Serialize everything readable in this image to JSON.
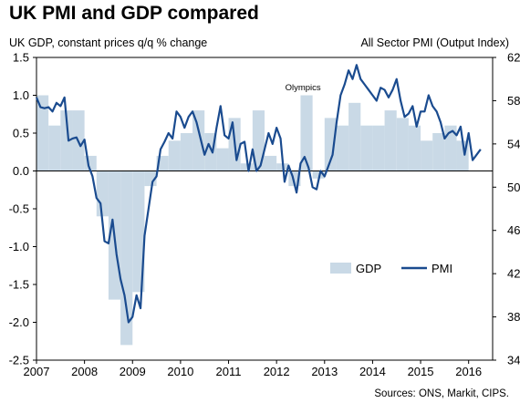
{
  "title": "UK PMI and GDP compared",
  "source": "Sources: ONS, Markit, CIPS.",
  "chart_data": {
    "type": "bar+line",
    "title": "UK PMI and GDP compared",
    "left_axis_label": "UK GDP, constant prices q/q % change",
    "right_axis_label": "All Sector PMI (Output Index)",
    "left_ylim": [
      -2.5,
      1.5
    ],
    "left_ticks": [
      "1.5",
      "1.0",
      "0.5",
      "0.0",
      "-0.5",
      "-1.0",
      "-1.5",
      "-2.0",
      "-2.5"
    ],
    "right_ylim": [
      34,
      62
    ],
    "right_ticks": [
      "62",
      "58",
      "54",
      "50",
      "46",
      "42",
      "38",
      "34"
    ],
    "x_range": [
      2007,
      2016.5
    ],
    "x_ticks": [
      "2007",
      "2008",
      "2009",
      "2010",
      "2011",
      "2012",
      "2013",
      "2014",
      "2015",
      "2016"
    ],
    "legend_position": "right-center",
    "annotation": "Olympics",
    "series": [
      {
        "name": "GDP",
        "type": "bar",
        "axis": "left",
        "color": "#c9d9e6",
        "quarter_start": 2007,
        "values": [
          1.0,
          0.6,
          0.8,
          0.8,
          0.2,
          -0.6,
          -1.7,
          -2.3,
          -1.6,
          -0.2,
          0.2,
          0.4,
          0.5,
          0.8,
          0.5,
          0.3,
          0.7,
          0.1,
          0.8,
          0.2,
          0.1,
          -0.2,
          1.0,
          -0.1,
          0.7,
          0.6,
          0.9,
          0.6,
          0.6,
          0.8,
          0.7,
          0.6,
          0.4,
          0.5,
          0.6,
          0.4
        ]
      },
      {
        "name": "PMI",
        "type": "line",
        "axis": "right",
        "color": "#1a4b8f",
        "month_start": 2007,
        "values": [
          58.3,
          57.4,
          57.3,
          57.4,
          57.0,
          57.8,
          57.5,
          58.3,
          54.3,
          54.5,
          54.6,
          53.8,
          54.4,
          52.0,
          51.0,
          49.0,
          48.5,
          45.0,
          44.8,
          47.0,
          43.8,
          41.5,
          40.0,
          37.5,
          38.0,
          40.0,
          38.8,
          45.5,
          48.0,
          50.5,
          51.0,
          53.5,
          54.2,
          55.0,
          54.5,
          57.0,
          56.5,
          55.5,
          56.5,
          57.0,
          56.0,
          54.5,
          53.0,
          54.0,
          53.2,
          55.5,
          57.5,
          54.8,
          54.5,
          56.0,
          52.5,
          54.0,
          54.2,
          51.5,
          53.5,
          51.5,
          52.0,
          53.5,
          55.0,
          54.0,
          55.5,
          54.5,
          50.5,
          52.0,
          51.0,
          49.5,
          52.2,
          52.8,
          51.8,
          50.0,
          49.8,
          51.5,
          51.0,
          52.0,
          53.0,
          56.0,
          58.5,
          59.5,
          60.8,
          60.0,
          61.3,
          60.0,
          59.5,
          59.0,
          58.5,
          58.0,
          59.2,
          59.0,
          58.3,
          59.0,
          60.0,
          58.0,
          56.5,
          56.8,
          57.5,
          55.6,
          57.0,
          57.0,
          58.5,
          57.5,
          57.0,
          56.0,
          54.5,
          55.0,
          55.2,
          54.8,
          55.6,
          53.0,
          55.0,
          52.5,
          53.0,
          53.5
        ]
      }
    ]
  }
}
